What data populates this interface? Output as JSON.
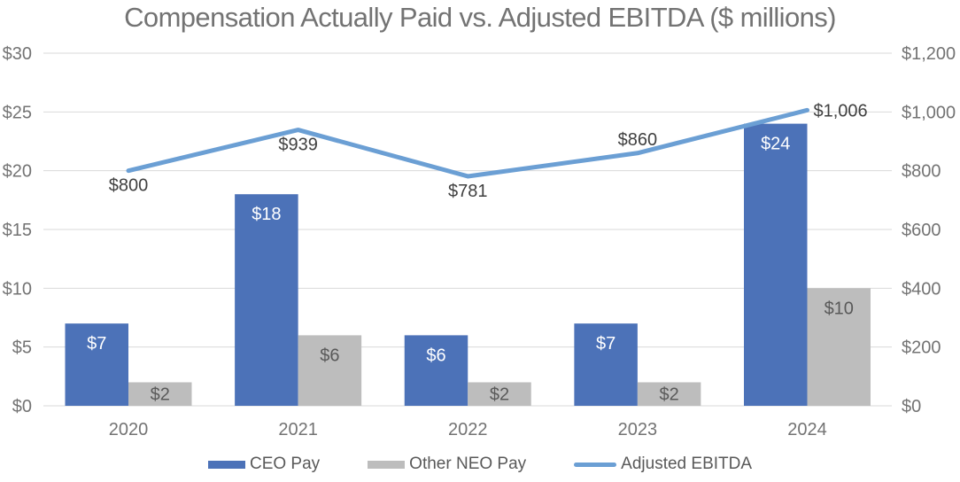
{
  "title": "Compensation Actually Paid vs. Adjusted EBITDA ($ millions)",
  "chart_data": {
    "type": "bar+line combo",
    "categories": [
      "2020",
      "2021",
      "2022",
      "2023",
      "2024"
    ],
    "series": [
      {
        "name": "CEO Pay",
        "type": "bar",
        "axis": "left",
        "color": "#4C72B8",
        "values": [
          7,
          18,
          6,
          7,
          24
        ],
        "labels": [
          "$7",
          "$18",
          "$6",
          "$7",
          "$24"
        ]
      },
      {
        "name": "Other NEO Pay",
        "type": "bar",
        "axis": "left",
        "color": "#BDBDBD",
        "values": [
          2,
          6,
          2,
          2,
          10
        ],
        "labels": [
          "$2",
          "$6",
          "$2",
          "$2",
          "$10"
        ]
      },
      {
        "name": "Adjusted EBITDA",
        "type": "line",
        "axis": "right",
        "color": "#6B9FD4",
        "values": [
          800,
          939,
          781,
          860,
          1006
        ],
        "labels": [
          "$800",
          "$939",
          "$781",
          "$860",
          "$1,006"
        ],
        "label_positions": [
          "below",
          "below",
          "below",
          "above",
          "right"
        ]
      }
    ],
    "left_axis": {
      "min": 0,
      "max": 30,
      "step": 5,
      "ticks": [
        "$0",
        "$5",
        "$10",
        "$15",
        "$20",
        "$25",
        "$30"
      ]
    },
    "right_axis": {
      "min": 0,
      "max": 1200,
      "step": 200,
      "ticks": [
        "$0",
        "$200",
        "$400",
        "$600",
        "$800",
        "$1,000",
        "$1,200"
      ]
    },
    "grid": true,
    "legend_position": "bottom",
    "colors": {
      "grid": "#D9D9D9",
      "axis_text": "#737373",
      "bar_label_on_blue": "#FFFFFF",
      "bar_label_on_gray": "#595959",
      "line_label": "#404040"
    }
  },
  "legend": {
    "items": [
      {
        "label": "CEO Pay",
        "marker": "rect"
      },
      {
        "label": "Other NEO Pay",
        "marker": "rect"
      },
      {
        "label": "Adjusted EBITDA",
        "marker": "line"
      }
    ]
  }
}
